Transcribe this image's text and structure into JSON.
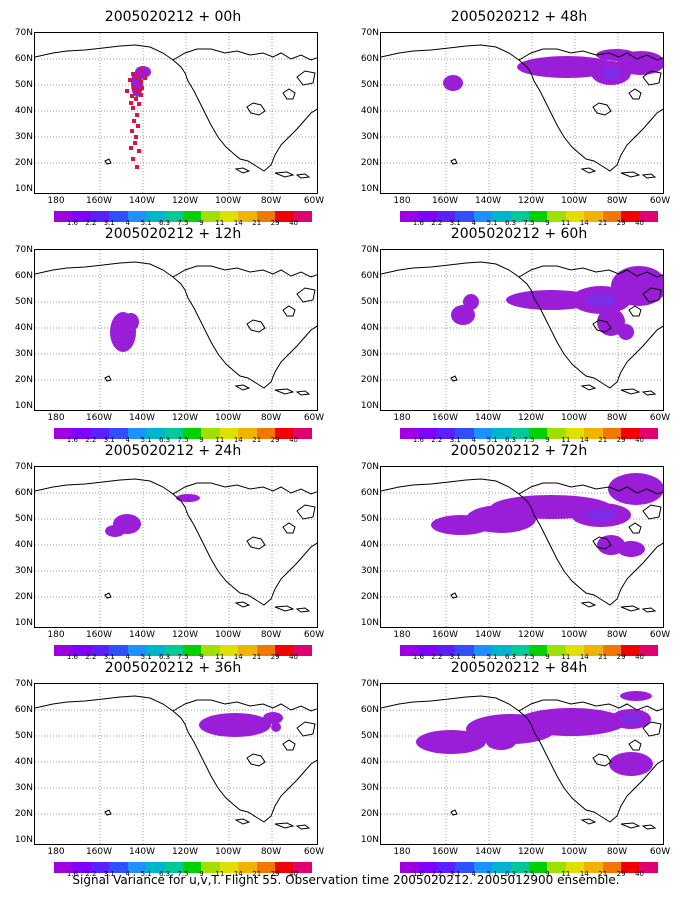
{
  "panels": [
    {
      "title": "2005020212 + 00h",
      "col": 0,
      "row": 0,
      "style": "dots",
      "blobs": [
        [
          102,
          51,
          6,
          13
        ],
        [
          108,
          39,
          8,
          6
        ],
        [
          101,
          44,
          4,
          4
        ]
      ],
      "dots": [
        [
          98,
          41
        ],
        [
          102,
          45
        ],
        [
          106,
          49
        ],
        [
          99,
          55
        ],
        [
          103,
          58
        ],
        [
          97,
          63
        ],
        [
          101,
          66
        ],
        [
          104,
          71
        ],
        [
          98,
          75
        ],
        [
          102,
          82
        ],
        [
          99,
          88
        ],
        [
          103,
          93
        ],
        [
          97,
          98
        ],
        [
          101,
          104
        ],
        [
          106,
          37
        ],
        [
          95,
          47
        ],
        [
          110,
          45
        ],
        [
          92,
          58
        ],
        [
          96,
          70
        ],
        [
          100,
          110
        ],
        [
          104,
          118
        ],
        [
          98,
          126
        ],
        [
          102,
          134
        ],
        [
          96,
          115
        ],
        [
          106,
          62
        ],
        [
          107,
          55
        ]
      ]
    },
    {
      "title": "2005020212 + 48h",
      "col": 1,
      "row": 0,
      "blobs": [
        [
          72,
          50,
          10,
          8
        ],
        [
          186,
          34,
          50,
          11
        ],
        [
          230,
          40,
          20,
          12
        ],
        [
          260,
          30,
          24,
          12
        ],
        [
          235,
          22,
          20,
          6
        ]
      ]
    },
    {
      "title": "2005020212 + 12h",
      "col": 0,
      "row": 1,
      "blobs": [
        [
          88,
          82,
          13,
          20
        ],
        [
          96,
          72,
          8,
          9
        ]
      ]
    },
    {
      "title": "2005020212 + 60h",
      "col": 1,
      "row": 1,
      "blobs": [
        [
          82,
          65,
          12,
          10
        ],
        [
          90,
          52,
          8,
          8
        ],
        [
          170,
          50,
          45,
          10
        ],
        [
          220,
          50,
          30,
          14
        ],
        [
          258,
          36,
          28,
          20
        ],
        [
          230,
          72,
          14,
          14
        ],
        [
          245,
          82,
          8,
          8
        ]
      ]
    },
    {
      "title": "2005020212 + 24h",
      "col": 0,
      "row": 2,
      "blobs": [
        [
          92,
          57,
          14,
          10
        ],
        [
          80,
          64,
          10,
          6
        ],
        [
          153,
          31,
          12,
          4
        ]
      ]
    },
    {
      "title": "2005020212 + 72h",
      "col": 1,
      "row": 2,
      "blobs": [
        [
          80,
          58,
          30,
          10
        ],
        [
          120,
          52,
          35,
          14
        ],
        [
          170,
          40,
          60,
          12
        ],
        [
          220,
          48,
          30,
          12
        ],
        [
          255,
          22,
          28,
          16
        ],
        [
          230,
          78,
          14,
          10
        ],
        [
          250,
          82,
          14,
          8
        ]
      ]
    },
    {
      "title": "2005020212 + 36h",
      "col": 0,
      "row": 3,
      "blobs": [
        [
          200,
          41,
          36,
          12
        ],
        [
          238,
          34,
          10,
          6
        ],
        [
          241,
          43,
          5,
          5
        ]
      ]
    },
    {
      "title": "2005020212 + 84h",
      "col": 1,
      "row": 3,
      "blobs": [
        [
          70,
          58,
          35,
          12
        ],
        [
          130,
          45,
          45,
          15
        ],
        [
          190,
          38,
          55,
          14
        ],
        [
          250,
          35,
          20,
          10
        ],
        [
          255,
          12,
          16,
          5
        ],
        [
          250,
          80,
          22,
          12
        ],
        [
          120,
          58,
          15,
          8
        ]
      ]
    }
  ],
  "y_labels": [
    "70N",
    "60N",
    "50N",
    "40N",
    "30N",
    "20N",
    "10N"
  ],
  "x_labels": [
    "180",
    "160W",
    "140W",
    "120W",
    "100W",
    "80W",
    "60W"
  ],
  "colorbar_ticks": [
    "1.6",
    "2.2",
    "3.1",
    "4",
    "5.1",
    "6.3",
    "7.5",
    "9",
    "11",
    "14",
    "21",
    "29",
    "40"
  ],
  "colorbar_colors": [
    "#a000e0",
    "#8000ff",
    "#5a20ff",
    "#3050ff",
    "#1e90ff",
    "#00b4d0",
    "#00c896",
    "#00d000",
    "#a0e000",
    "#e0e000",
    "#f0b400",
    "#f07800",
    "#f00000",
    "#e00070"
  ],
  "caption": "Signal Variance for u,v,T. Flight 55. Observation time 2005020212. 2005012900 ensemble.",
  "colors": {
    "signal_fill": "#9a1ed8",
    "signal_core": "#7d2ce8",
    "dots": "#dc143c",
    "land": "#000000",
    "grid": "#777777"
  }
}
